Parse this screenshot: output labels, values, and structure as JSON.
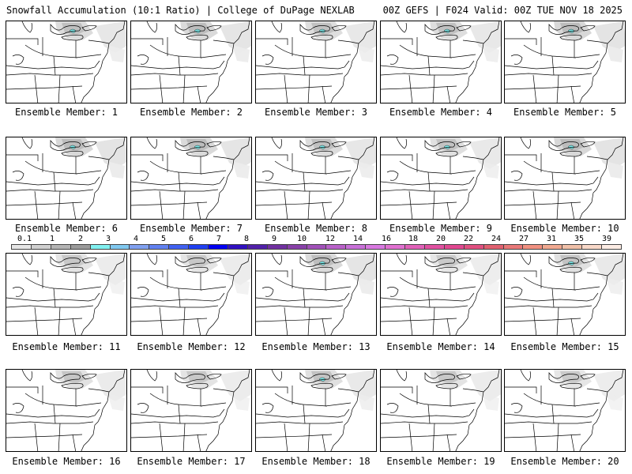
{
  "header": {
    "left": "Snowfall Accumulation (10:1 Ratio) | College of DuPage NEXLAB",
    "right": "00Z GEFS | F024 Valid: 00Z TUE NOV 18 2025"
  },
  "panels": [
    {
      "caption": "Ensemble Member: 1"
    },
    {
      "caption": "Ensemble Member: 2"
    },
    {
      "caption": "Ensemble Member: 3"
    },
    {
      "caption": "Ensemble Member: 4"
    },
    {
      "caption": "Ensemble Member: 5"
    },
    {
      "caption": "Ensemble Member: 6"
    },
    {
      "caption": "Ensemble Member: 7"
    },
    {
      "caption": "Ensemble Member: 8"
    },
    {
      "caption": "Ensemble Member: 9"
    },
    {
      "caption": "Ensemble Member: 10"
    },
    {
      "caption": "Ensemble Member: 11"
    },
    {
      "caption": "Ensemble Member: 12"
    },
    {
      "caption": "Ensemble Member: 13"
    },
    {
      "caption": "Ensemble Member: 14"
    },
    {
      "caption": "Ensemble Member: 15"
    },
    {
      "caption": "Ensemble Member: 16"
    },
    {
      "caption": "Ensemble Member: 17"
    },
    {
      "caption": "Ensemble Member: 18"
    },
    {
      "caption": "Ensemble Member: 19"
    },
    {
      "caption": "Ensemble Member: 20"
    }
  ],
  "colorbar": {
    "labels": [
      "0.1",
      "1",
      "2",
      "3",
      "4",
      "5",
      "6",
      "7",
      "8",
      "9",
      "10",
      "12",
      "14",
      "16",
      "18",
      "20",
      "22",
      "24",
      "27",
      "31",
      "35",
      "39"
    ],
    "colors": [
      "#e6e6e6",
      "#cfcfcf",
      "#b3b3b3",
      "#9a9a9a",
      "#80f0f0",
      "#80c8f0",
      "#80a0f0",
      "#6080f0",
      "#4060f0",
      "#2040f0",
      "#0000f0",
      "#3010c0",
      "#5020a8",
      "#7030a0",
      "#8840a8",
      "#a050b8",
      "#b860c8",
      "#c870d8",
      "#d878e0",
      "#e070d0",
      "#e060b8",
      "#e050a0",
      "#e04890",
      "#e05080",
      "#e06070",
      "#e87878",
      "#f09080",
      "#f0a890",
      "#f0c0a8",
      "#f8d8c8",
      "#fcece4"
    ]
  }
}
